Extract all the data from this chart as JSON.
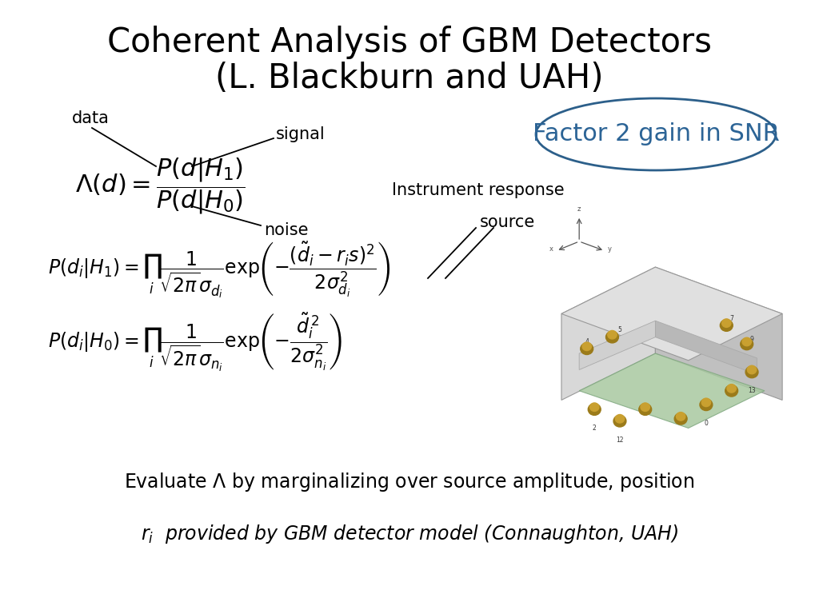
{
  "title_line1": "Coherent Analysis of GBM Detectors",
  "title_line2": "(L. Blackburn and UAH)",
  "title_fontsize": 30,
  "title_color": "#000000",
  "ellipse_text": "Factor 2 gain in SNR",
  "ellipse_color": "#2C5F8A",
  "ellipse_text_color": "#2C6496",
  "ellipse_text_fontsize": 22,
  "formula_main": "$\\Lambda(d) = \\dfrac{P(d|H_1)}{P(d|H_0)}$",
  "formula_H1": "$P(d_i|H_1) = \\prod_i \\dfrac{1}{\\sqrt{2\\pi}\\sigma_{d_i}} \\exp\\!\\left(-\\dfrac{(\\tilde{d}_i - r_i s)^2}{2\\sigma_{d_i}^2}\\right)$",
  "formula_H0": "$P(d_i|H_0) = \\prod_i \\dfrac{1}{\\sqrt{2\\pi}\\sigma_{n_i}} \\exp\\!\\left(-\\dfrac{\\tilde{d}_i^{\\,2}}{2\\sigma_{n_i}^2}\\right)$",
  "label_data": "data",
  "label_signal": "signal",
  "label_noise": "noise",
  "label_instrument": "Instrument response",
  "label_source": "source",
  "bottom_text1": "Evaluate $\\Lambda$ by marginalizing over source amplitude, position",
  "bottom_text2": "$r_i$  provided by GBM detector model (Connaughton, UAH)",
  "background_color": "#ffffff"
}
